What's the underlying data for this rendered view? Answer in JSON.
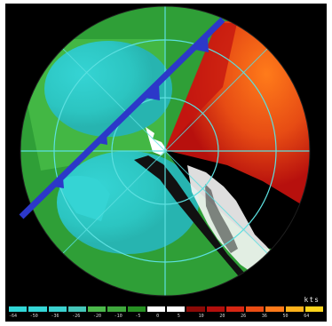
{
  "image": {
    "colors": {
      "background": "#000000",
      "negative_light": "#35d4d4",
      "negative_dark": "#2f9f37",
      "negative_mid": "#46b844",
      "positive_light": "#ff7b1a",
      "positive_mid": "#e74c14",
      "positive_dark": "#b7100d",
      "front": "#2c38c9",
      "range_ring": "#5ce0e0",
      "clutter": "#ffffff"
    }
  },
  "velocity_scale": {
    "units_label": "kts",
    "tick_labels": [
      "-64",
      "-50",
      "-36",
      "-26",
      "-20",
      "-10",
      "-5",
      "0",
      "5",
      "10",
      "20",
      "26",
      "36",
      "50",
      "64"
    ],
    "colors": [
      "#31d7d7",
      "#35d6d6",
      "#3bd1cf",
      "#45c6b9",
      "#4cb94b",
      "#3fa83d",
      "#279123",
      "#ffffff",
      "#ffffff",
      "#8b0a07",
      "#b20f0c",
      "#d72613",
      "#eb4d14",
      "#ff7a1a",
      "#ffb21b",
      "#ffd51c"
    ]
  }
}
